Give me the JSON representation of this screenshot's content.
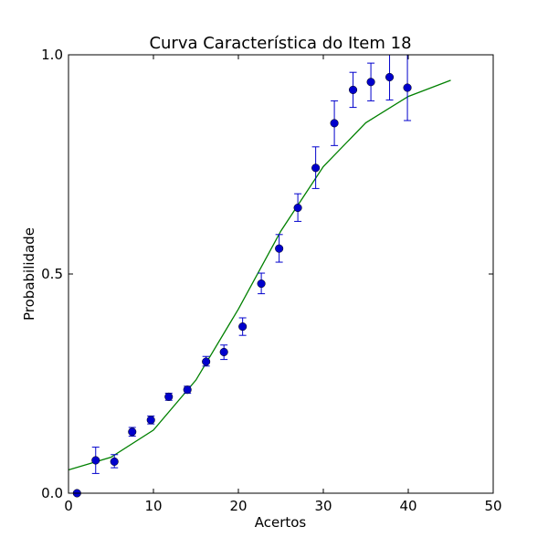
{
  "chart_data": {
    "type": "scatter",
    "title": "Curva Característica do Item 18",
    "xlabel": "Acertos",
    "ylabel": "Probabilidade",
    "xlim": [
      0,
      50
    ],
    "ylim": [
      0,
      1
    ],
    "xticks": [
      0,
      10,
      20,
      30,
      40,
      50
    ],
    "yticks": [
      0,
      0.5,
      1
    ],
    "xtick_labels": [
      "0",
      "10",
      "20",
      "30",
      "40",
      "50"
    ],
    "ytick_labels": [
      "0.0",
      "0.5",
      "1.0"
    ],
    "grid": false,
    "series": [
      {
        "kind": "points-with-error-bars",
        "color": "#0000cc",
        "points": [
          {
            "x": 1.0,
            "y": 0.0,
            "lo": 0.0,
            "hi": 0.0
          },
          {
            "x": 3.2,
            "y": 0.075,
            "lo": 0.045,
            "hi": 0.105
          },
          {
            "x": 5.4,
            "y": 0.072,
            "lo": 0.058,
            "hi": 0.088
          },
          {
            "x": 7.5,
            "y": 0.14,
            "lo": 0.13,
            "hi": 0.15
          },
          {
            "x": 9.7,
            "y": 0.167,
            "lo": 0.158,
            "hi": 0.176
          },
          {
            "x": 11.8,
            "y": 0.22,
            "lo": 0.212,
            "hi": 0.228
          },
          {
            "x": 14.0,
            "y": 0.236,
            "lo": 0.228,
            "hi": 0.244
          },
          {
            "x": 16.2,
            "y": 0.3,
            "lo": 0.29,
            "hi": 0.312
          },
          {
            "x": 18.3,
            "y": 0.322,
            "lo": 0.305,
            "hi": 0.338
          },
          {
            "x": 20.5,
            "y": 0.38,
            "lo": 0.36,
            "hi": 0.4
          },
          {
            "x": 22.7,
            "y": 0.478,
            "lo": 0.455,
            "hi": 0.502
          },
          {
            "x": 24.8,
            "y": 0.558,
            "lo": 0.527,
            "hi": 0.59
          },
          {
            "x": 27.0,
            "y": 0.651,
            "lo": 0.62,
            "hi": 0.683
          },
          {
            "x": 29.1,
            "y": 0.742,
            "lo": 0.695,
            "hi": 0.79
          },
          {
            "x": 31.3,
            "y": 0.844,
            "lo": 0.793,
            "hi": 0.895
          },
          {
            "x": 33.5,
            "y": 0.92,
            "lo": 0.88,
            "hi": 0.96
          },
          {
            "x": 35.6,
            "y": 0.938,
            "lo": 0.895,
            "hi": 0.981
          },
          {
            "x": 37.8,
            "y": 0.949,
            "lo": 0.897,
            "hi": 1.0
          },
          {
            "x": 39.9,
            "y": 0.925,
            "lo": 0.85,
            "hi": 1.0
          }
        ]
      },
      {
        "kind": "line",
        "color": "#008000",
        "points": [
          {
            "x": 0,
            "y": 0.053
          },
          {
            "x": 5,
            "y": 0.082
          },
          {
            "x": 10,
            "y": 0.144
          },
          {
            "x": 15,
            "y": 0.258
          },
          {
            "x": 20,
            "y": 0.42
          },
          {
            "x": 25,
            "y": 0.598
          },
          {
            "x": 30,
            "y": 0.745
          },
          {
            "x": 35,
            "y": 0.845
          },
          {
            "x": 40,
            "y": 0.905
          },
          {
            "x": 45,
            "y": 0.942
          }
        ]
      }
    ]
  }
}
